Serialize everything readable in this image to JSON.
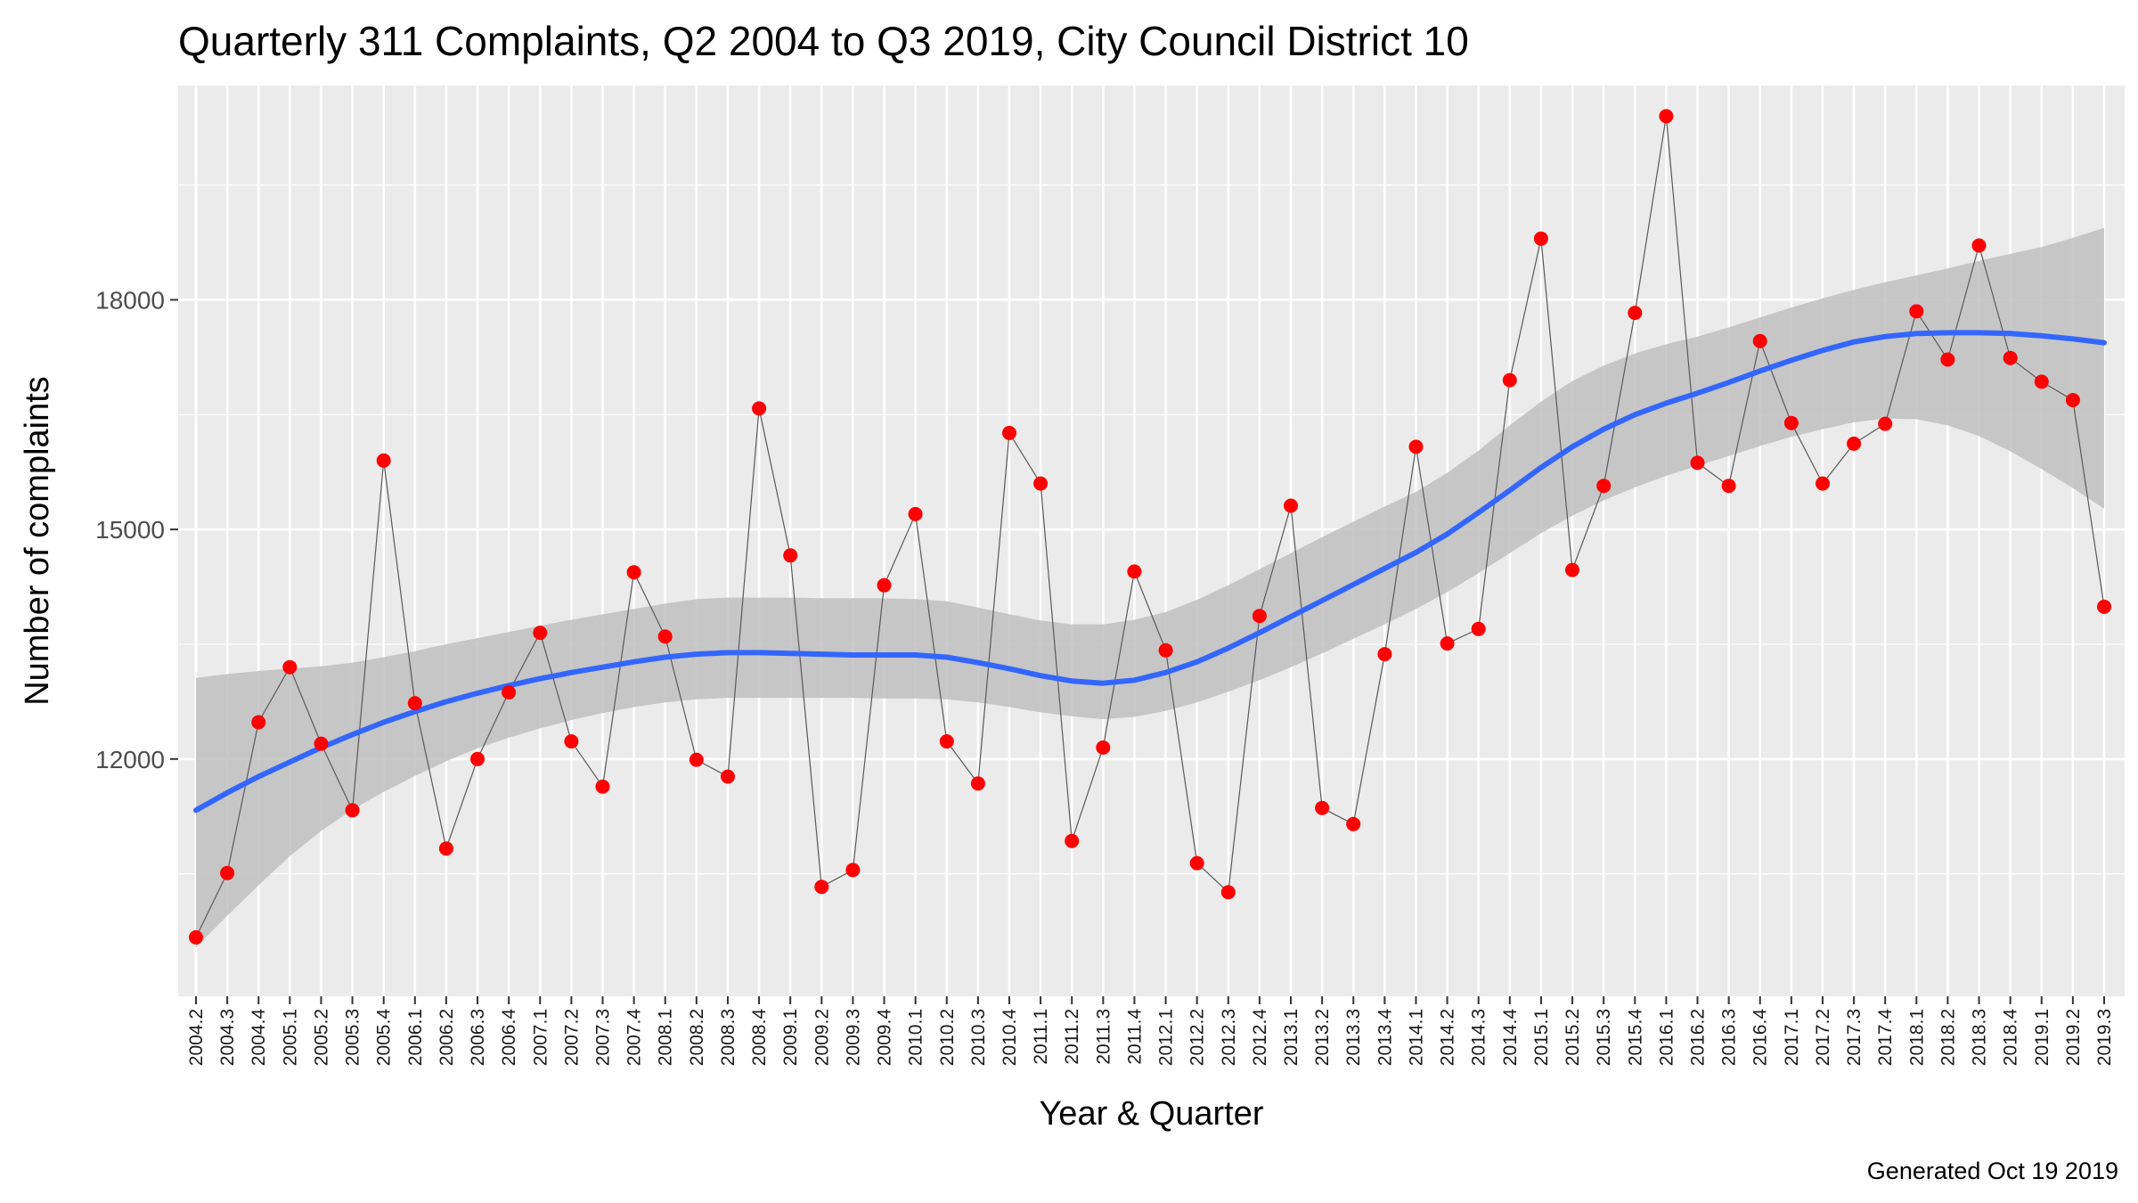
{
  "chart_data": {
    "type": "line",
    "title": "Quarterly 311 Complaints, Q2 2004 to Q3 2019, City Council District 10",
    "xlabel": "Year & Quarter",
    "ylabel": "Number of complaints",
    "caption": "Generated Oct 19 2019",
    "y_ticks": [
      "12000",
      "15000",
      "18000"
    ],
    "ylim": [
      8900,
      20800
    ],
    "grid": true,
    "colors": {
      "panel": "#ebebeb",
      "grid": "#ffffff",
      "points": "#ff0000",
      "line": "#595959",
      "smooth": "#3366ff",
      "ribbon": "#bfbfbf"
    },
    "categories": [
      "2004.2",
      "2004.3",
      "2004.4",
      "2005.1",
      "2005.2",
      "2005.3",
      "2005.4",
      "2006.1",
      "2006.2",
      "2006.3",
      "2006.4",
      "2007.1",
      "2007.2",
      "2007.3",
      "2007.4",
      "2008.1",
      "2008.2",
      "2008.3",
      "2008.4",
      "2009.1",
      "2009.2",
      "2009.3",
      "2009.4",
      "2010.1",
      "2010.2",
      "2010.3",
      "2010.4",
      "2011.1",
      "2011.2",
      "2011.3",
      "2011.4",
      "2012.1",
      "2012.2",
      "2012.3",
      "2012.4",
      "2013.1",
      "2013.2",
      "2013.3",
      "2013.4",
      "2014.1",
      "2014.2",
      "2014.3",
      "2014.4",
      "2015.1",
      "2015.2",
      "2015.3",
      "2015.4",
      "2016.1",
      "2016.2",
      "2016.3",
      "2016.4",
      "2017.1",
      "2017.2",
      "2017.3",
      "2017.4",
      "2018.1",
      "2018.2",
      "2018.3",
      "2018.4",
      "2019.1",
      "2019.2",
      "2019.3"
    ],
    "series": [
      {
        "values": [
          9670,
          10510,
          12480,
          13200,
          12200,
          11330,
          15900,
          12730,
          10830,
          12000,
          12870,
          13650,
          12230,
          11640,
          14440,
          13600,
          11990,
          11770,
          16580,
          14660,
          10330,
          10550,
          14270,
          15200,
          12230,
          11680,
          16260,
          15600,
          10930,
          12150,
          14450,
          13420,
          10640,
          10260,
          13870,
          15310,
          11360,
          11150,
          13370,
          16080,
          13510,
          13700,
          16950,
          18800,
          14470,
          15570,
          17830,
          20400,
          15870,
          15570,
          17460,
          16390,
          15600,
          16120,
          16380,
          17850,
          17220,
          18710,
          17240,
          16930,
          16690,
          13990
        ]
      }
    ],
    "smooth": {
      "values": [
        11330,
        11560,
        11770,
        11960,
        12150,
        12320,
        12480,
        12620,
        12750,
        12860,
        12960,
        13050,
        13130,
        13200,
        13270,
        13330,
        13370,
        13390,
        13390,
        13380,
        13370,
        13360,
        13360,
        13360,
        13330,
        13260,
        13180,
        13090,
        13020,
        12990,
        13030,
        13130,
        13270,
        13450,
        13650,
        13860,
        14070,
        14280,
        14490,
        14700,
        14940,
        15220,
        15510,
        15810,
        16080,
        16310,
        16500,
        16650,
        16780,
        16920,
        17070,
        17210,
        17340,
        17450,
        17520,
        17560,
        17570,
        17570,
        17560,
        17530,
        17490,
        17440
      ],
      "ci_lower": [
        9540,
        9950,
        10350,
        10730,
        11060,
        11340,
        11570,
        11780,
        11970,
        12140,
        12280,
        12400,
        12510,
        12600,
        12680,
        12740,
        12780,
        12800,
        12800,
        12800,
        12800,
        12800,
        12790,
        12790,
        12780,
        12740,
        12680,
        12610,
        12560,
        12520,
        12550,
        12630,
        12740,
        12880,
        13030,
        13200,
        13380,
        13570,
        13760,
        13960,
        14180,
        14430,
        14690,
        14950,
        15180,
        15380,
        15550,
        15700,
        15830,
        15960,
        16090,
        16210,
        16310,
        16400,
        16450,
        16440,
        16360,
        16220,
        16020,
        15790,
        15540,
        15270
      ],
      "ci_upper": [
        13060,
        13110,
        13150,
        13180,
        13210,
        13260,
        13330,
        13410,
        13500,
        13580,
        13660,
        13740,
        13820,
        13890,
        13960,
        14030,
        14090,
        14110,
        14110,
        14110,
        14100,
        14100,
        14100,
        14090,
        14060,
        13980,
        13890,
        13810,
        13760,
        13760,
        13820,
        13920,
        14080,
        14270,
        14480,
        14690,
        14900,
        15100,
        15300,
        15490,
        15740,
        16030,
        16360,
        16670,
        16940,
        17140,
        17300,
        17420,
        17520,
        17640,
        17770,
        17900,
        18020,
        18130,
        18230,
        18320,
        18410,
        18510,
        18600,
        18690,
        18810,
        18940
      ]
    }
  }
}
